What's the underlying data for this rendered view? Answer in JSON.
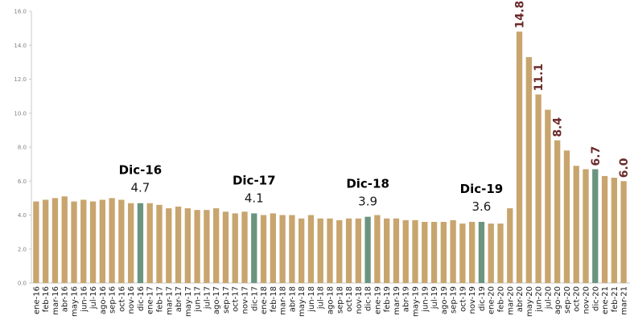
{
  "chart_data": {
    "type": "bar",
    "categories": [
      "ene-16",
      "feb-16",
      "mar-16",
      "abr-16",
      "may-16",
      "jun-16",
      "jul-16",
      "ago-16",
      "sep-16",
      "oct-16",
      "nov-16",
      "dic-16",
      "ene-17",
      "feb-17",
      "mar-17",
      "abr-17",
      "may-17",
      "jun-17",
      "jul-17",
      "ago-17",
      "sep-17",
      "oct-17",
      "nov-17",
      "dic-17",
      "ene-18",
      "feb-18",
      "mar-18",
      "abr-18",
      "may-18",
      "jun-18",
      "jul-18",
      "ago-18",
      "sep-18",
      "oct-18",
      "nov-18",
      "dic-18",
      "ene-19",
      "feb-19",
      "mar-19",
      "abr-19",
      "may-19",
      "jun-19",
      "jul-19",
      "ago-19",
      "sep-19",
      "oct-19",
      "nov-19",
      "dic-19",
      "ene-20",
      "feb-20",
      "mar-20",
      "abr-20",
      "may-20",
      "jun-20",
      "jul-20",
      "ago-20",
      "sep-20",
      "oct-20",
      "nov-20",
      "dic-20",
      "ene-21",
      "feb-21",
      "mar-21"
    ],
    "values": [
      4.8,
      4.9,
      5.0,
      5.1,
      4.8,
      4.9,
      4.8,
      4.9,
      5.0,
      4.9,
      4.7,
      4.7,
      4.7,
      4.6,
      4.4,
      4.5,
      4.4,
      4.3,
      4.3,
      4.4,
      4.2,
      4.1,
      4.2,
      4.1,
      4.0,
      4.1,
      4.0,
      4.0,
      3.8,
      4.0,
      3.8,
      3.8,
      3.7,
      3.8,
      3.8,
      3.9,
      4.0,
      3.8,
      3.8,
      3.7,
      3.7,
      3.6,
      3.6,
      3.6,
      3.7,
      3.5,
      3.6,
      3.6,
      3.5,
      3.5,
      4.4,
      14.8,
      13.3,
      11.1,
      10.2,
      8.4,
      7.8,
      6.9,
      6.7,
      6.7,
      6.3,
      6.2,
      6.0
    ],
    "highlighted": [
      "dic-16",
      "dic-17",
      "dic-18",
      "dic-19",
      "dic-20"
    ],
    "ylim": [
      0,
      16
    ],
    "yticks": [
      "0.0",
      "2.0",
      "4.0",
      "6.0",
      "8.0",
      "10.0",
      "12.0",
      "14.0",
      "16.0"
    ],
    "grid": false,
    "colors": {
      "bar": "#C8A56E",
      "highlight": "#6B9480",
      "peak_label": "#6B2A2A"
    },
    "annotations": [
      {
        "category": "dic-16",
        "title": "Dic-16",
        "value_text": "4.7"
      },
      {
        "category": "dic-17",
        "title": "Dic-17",
        "value_text": "4.1"
      },
      {
        "category": "dic-18",
        "title": "Dic-18",
        "value_text": "3.9"
      },
      {
        "category": "dic-19",
        "title": "Dic-19",
        "value_text": "3.6"
      }
    ],
    "peak_labels": [
      {
        "category": "abr-20",
        "text": "14.8"
      },
      {
        "category": "jun-20",
        "text": "11.1"
      },
      {
        "category": "ago-20",
        "text": "8.4"
      },
      {
        "category": "dic-20",
        "text": "6.7"
      },
      {
        "category": "mar-21",
        "text": "6.0"
      }
    ]
  }
}
